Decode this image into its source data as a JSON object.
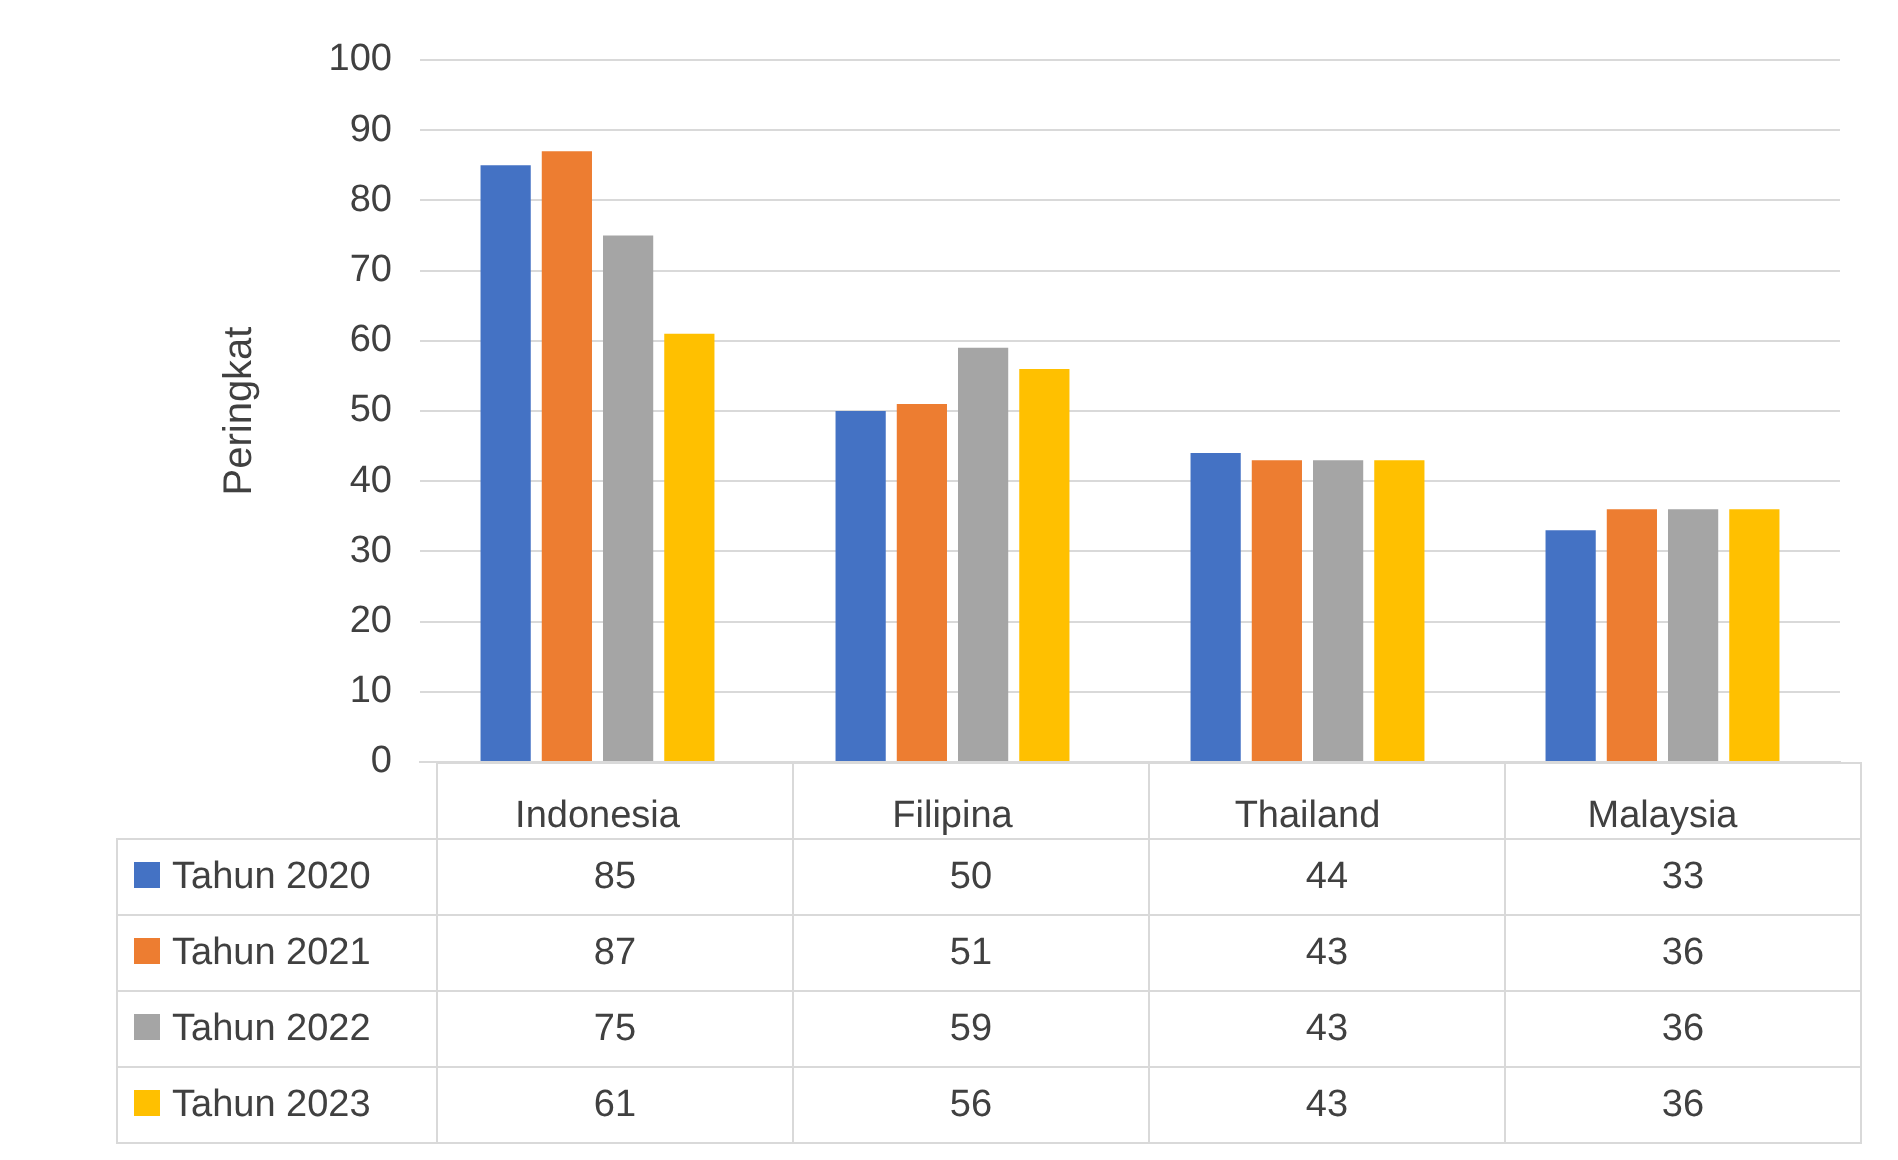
{
  "chart_data": {
    "type": "bar",
    "ylabel": "Peringkat",
    "categories": [
      "Indonesia",
      "Filipina",
      "Thailand",
      "Malaysia"
    ],
    "series": [
      {
        "name": "Tahun 2020",
        "color": "#4472c4",
        "values": [
          85,
          50,
          44,
          33
        ]
      },
      {
        "name": "Tahun 2021",
        "color": "#ed7d31",
        "values": [
          87,
          51,
          43,
          36
        ]
      },
      {
        "name": "Tahun 2022",
        "color": "#a5a5a5",
        "values": [
          75,
          59,
          43,
          36
        ]
      },
      {
        "name": "Tahun 2023",
        "color": "#ffc000",
        "values": [
          61,
          56,
          43,
          36
        ]
      }
    ],
    "ylim": [
      0,
      100
    ],
    "yticks": [
      0,
      10,
      20,
      30,
      40,
      50,
      60,
      70,
      80,
      90,
      100
    ],
    "grid": "y",
    "legend": "bottom",
    "data_labels": true
  }
}
